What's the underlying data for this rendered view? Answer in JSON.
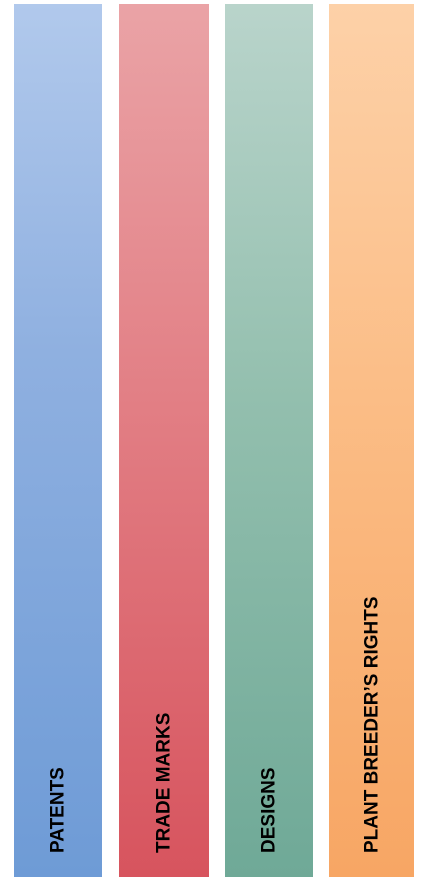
{
  "columns": [
    {
      "label": "PATENTS",
      "color": "#6e9bd6"
    },
    {
      "label": "TRADE MARKS",
      "color": "#d7545e"
    },
    {
      "label": "DESIGNS",
      "color": "#6fa997"
    },
    {
      "label": "PLANT BREEDER’S RIGHTS",
      "color": "#f7a664"
    }
  ]
}
